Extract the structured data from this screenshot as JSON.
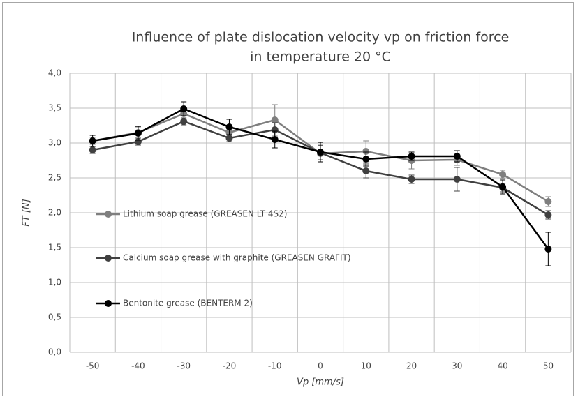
{
  "chart_data": {
    "type": "line",
    "title": [
      "Influence of plate dislocation velocity vp on friction force",
      "in temperature 20 °C"
    ],
    "x_label": "Vp [mm/s]",
    "y_label": "FT [N]",
    "categories": [
      "-50",
      "-40",
      "-30",
      "-20",
      "-10",
      "0",
      "10",
      "20",
      "30",
      "40",
      "50"
    ],
    "series": [
      {
        "name": "Lithium soap grease (GREASEN LT 4S2)",
        "color": "#7f7f7f",
        "values": [
          3.03,
          3.15,
          3.42,
          3.15,
          3.33,
          2.85,
          2.88,
          2.75,
          2.76,
          2.55,
          2.16
        ],
        "errors": [
          0.05,
          0.08,
          0.08,
          0.05,
          0.22,
          0.12,
          0.15,
          0.12,
          0.08,
          0.06,
          0.07
        ]
      },
      {
        "name": "Calcium soap grease with graphite (GREASEN GRAFIT)",
        "color": "#404040",
        "values": [
          2.9,
          3.02,
          3.31,
          3.07,
          3.19,
          2.86,
          2.6,
          2.48,
          2.48,
          2.36,
          1.97
        ],
        "errors": [
          0.05,
          0.05,
          0.05,
          0.05,
          0.1,
          0.1,
          0.1,
          0.06,
          0.17,
          0.06,
          0.06
        ]
      },
      {
        "name": "Bentonite grease (BENTERM 2)",
        "color": "#000000",
        "values": [
          3.03,
          3.14,
          3.49,
          3.23,
          3.05,
          2.87,
          2.77,
          2.81,
          2.81,
          2.37,
          1.48
        ],
        "errors": [
          0.08,
          0.1,
          0.1,
          0.11,
          0.12,
          0.14,
          0.1,
          0.06,
          0.08,
          0.1,
          0.24
        ]
      }
    ],
    "ylim": [
      0,
      4
    ],
    "yticks": [
      {
        "value": 0,
        "label": "0,0"
      },
      {
        "value": 0.5,
        "label": "0,5"
      },
      {
        "value": 1,
        "label": "1,0"
      },
      {
        "value": 1.5,
        "label": "1,5"
      },
      {
        "value": 2,
        "label": "2,0"
      },
      {
        "value": 2.5,
        "label": "2,5"
      },
      {
        "value": 3,
        "label": "3,0"
      },
      {
        "value": 3.5,
        "label": "3,5"
      },
      {
        "value": 4,
        "label": "4,0"
      }
    ],
    "grid": true,
    "legend": "left"
  }
}
